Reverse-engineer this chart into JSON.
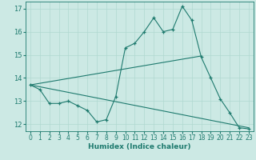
{
  "xlabel": "Humidex (Indice chaleur)",
  "xlim": [
    -0.5,
    23.5
  ],
  "ylim": [
    11.7,
    17.3
  ],
  "yticks": [
    12,
    13,
    14,
    15,
    16,
    17
  ],
  "xticks": [
    0,
    1,
    2,
    3,
    4,
    5,
    6,
    7,
    8,
    9,
    10,
    11,
    12,
    13,
    14,
    15,
    16,
    17,
    18,
    19,
    20,
    21,
    22,
    23
  ],
  "bg_color": "#cce9e4",
  "grid_color": "#b0d8d0",
  "line_color": "#1e7a6e",
  "line1_x": [
    0,
    1,
    2,
    3,
    4,
    5,
    6,
    7,
    8,
    9,
    10,
    11,
    12,
    13,
    14,
    15,
    16,
    17,
    18,
    19,
    20,
    21,
    22,
    23
  ],
  "line1_y": [
    13.7,
    13.5,
    12.9,
    12.9,
    13.0,
    12.8,
    12.6,
    12.1,
    12.2,
    13.2,
    15.3,
    15.5,
    16.0,
    16.6,
    16.0,
    16.1,
    17.1,
    16.5,
    14.9,
    14.0,
    13.1,
    12.5,
    11.85,
    11.8
  ],
  "line2_x": [
    0,
    18
  ],
  "line2_y": [
    13.7,
    14.95
  ],
  "line3_x": [
    0,
    23
  ],
  "line3_y": [
    13.7,
    11.85
  ]
}
